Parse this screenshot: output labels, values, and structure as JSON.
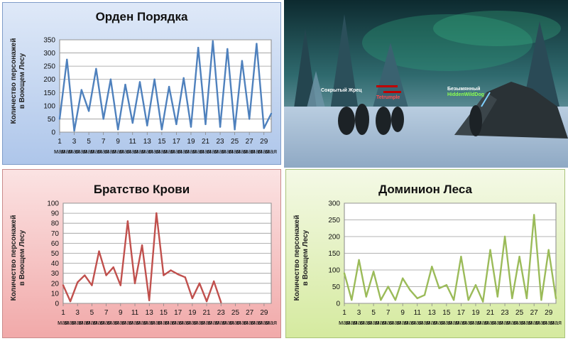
{
  "chart_data": [
    {
      "id": "order",
      "type": "line",
      "title": "Орден Порядка",
      "ylabel_line1": "Количество персонажей",
      "ylabel_line2": "в Воющем Лесу",
      "xlabel": "",
      "ylim": [
        0,
        350
      ],
      "yticks": [
        0,
        50,
        100,
        150,
        200,
        250,
        300,
        350
      ],
      "x_tick_labels": [
        "1",
        "3",
        "5",
        "7",
        "9",
        "11",
        "13",
        "15",
        "17",
        "19",
        "21",
        "23",
        "25",
        "27",
        "29"
      ],
      "x_tick_sublabel": "мая",
      "x": [
        1,
        2,
        3,
        4,
        5,
        6,
        7,
        8,
        9,
        10,
        11,
        12,
        13,
        14,
        15,
        16,
        17,
        18,
        19,
        20,
        21,
        22,
        23,
        24,
        25,
        26,
        27,
        28,
        29,
        30
      ],
      "values": [
        50,
        275,
        5,
        160,
        80,
        240,
        50,
        200,
        10,
        180,
        35,
        190,
        25,
        200,
        10,
        172,
        30,
        205,
        20,
        320,
        30,
        345,
        20,
        315,
        10,
        270,
        50,
        335,
        15,
        70
      ],
      "color": "#4f81bd",
      "grid": true
    },
    {
      "id": "blood",
      "type": "line",
      "title": "Братство Крови",
      "ylabel_line1": "Количество персонажей",
      "ylabel_line2": "в Воющем Лесу",
      "xlabel": "",
      "ylim": [
        0,
        100
      ],
      "yticks": [
        0,
        10,
        20,
        30,
        40,
        50,
        60,
        70,
        80,
        90,
        100
      ],
      "x_tick_labels": [
        "1",
        "3",
        "5",
        "7",
        "9",
        "11",
        "13",
        "15",
        "17",
        "19",
        "21",
        "23",
        "25",
        "27",
        "29"
      ],
      "x_tick_sublabel": "мая",
      "x": [
        1,
        2,
        3,
        4,
        5,
        6,
        7,
        8,
        9,
        10,
        11,
        12,
        13,
        14,
        15,
        16,
        17,
        18,
        19,
        20,
        21,
        22,
        23,
        24,
        25
      ],
      "values": [
        18,
        2,
        21,
        28,
        18,
        52,
        28,
        36,
        18,
        82,
        20,
        58,
        3,
        90,
        28,
        33,
        29,
        26,
        5,
        20,
        2,
        22,
        1,
        null,
        null
      ],
      "color": "#c0504d",
      "grid": true
    },
    {
      "id": "dominion",
      "type": "line",
      "title": "Доминион Леса",
      "ylabel_line1": "Количество персонажей",
      "ylabel_line2": "в Воющем Лесу",
      "xlabel": "",
      "ylim": [
        0,
        300
      ],
      "yticks": [
        0,
        50,
        100,
        150,
        200,
        250,
        300
      ],
      "x_tick_labels": [
        "1",
        "3",
        "5",
        "7",
        "9",
        "11",
        "13",
        "15",
        "17",
        "19",
        "21",
        "23",
        "25",
        "27",
        "29"
      ],
      "x_tick_sublabel": "мая",
      "x": [
        1,
        2,
        3,
        4,
        5,
        6,
        7,
        8,
        9,
        10,
        11,
        12,
        13,
        14,
        15,
        16,
        17,
        18,
        19,
        20,
        21,
        22,
        23,
        24,
        25,
        26,
        27,
        28,
        29,
        30
      ],
      "values": [
        90,
        10,
        130,
        20,
        95,
        10,
        50,
        10,
        75,
        40,
        15,
        25,
        110,
        45,
        55,
        10,
        140,
        10,
        55,
        5,
        160,
        20,
        200,
        15,
        140,
        15,
        265,
        10,
        160,
        15
      ],
      "color": "#9bbb59",
      "grid": true
    }
  ],
  "game": {
    "name1": "Сокрытый Жрец",
    "name2": "HiddenWildDog",
    "name3": "Безымянный",
    "name4": "Tetrumple"
  },
  "colors": {
    "order": "#4f81bd",
    "blood": "#c0504d",
    "dominion": "#9bbb59"
  }
}
